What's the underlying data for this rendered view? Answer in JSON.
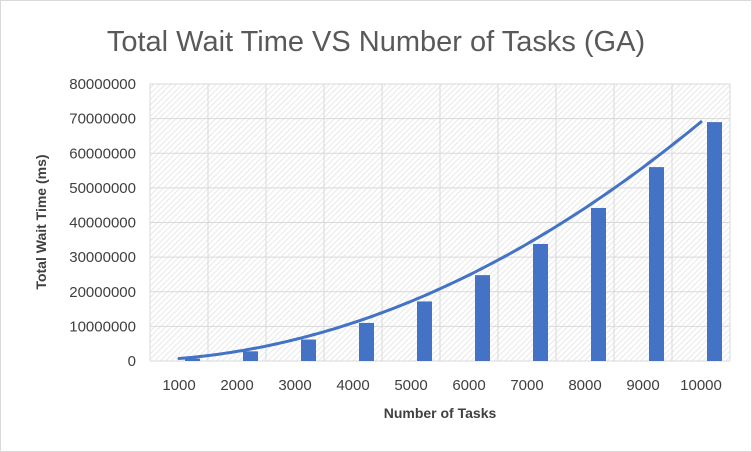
{
  "chart_data": {
    "type": "bar",
    "title": "Total Wait Time VS Number of Tasks (GA)",
    "xlabel": "Number of Tasks",
    "ylabel": "Total Wait Time (ms)",
    "categories": [
      "1000",
      "2000",
      "3000",
      "4000",
      "5000",
      "6000",
      "7000",
      "8000",
      "9000",
      "10000"
    ],
    "series": [
      {
        "values": [
          700000,
          2800000,
          6200000,
          11000000,
          17200000,
          24800000,
          33800000,
          44200000,
          56000000,
          69000000
        ]
      }
    ],
    "trendline": "polynomial",
    "ylim": [
      0,
      80000000
    ],
    "yticks": [
      "0",
      "10000000",
      "20000000",
      "30000000",
      "40000000",
      "50000000",
      "60000000",
      "70000000",
      "80000000"
    ],
    "grid": true,
    "legend": "none",
    "colors": {
      "bar": "#4472c4",
      "trendline": "#4472c4",
      "grid": "#d9d9d9",
      "text": "#404040",
      "title": "#595959"
    }
  }
}
